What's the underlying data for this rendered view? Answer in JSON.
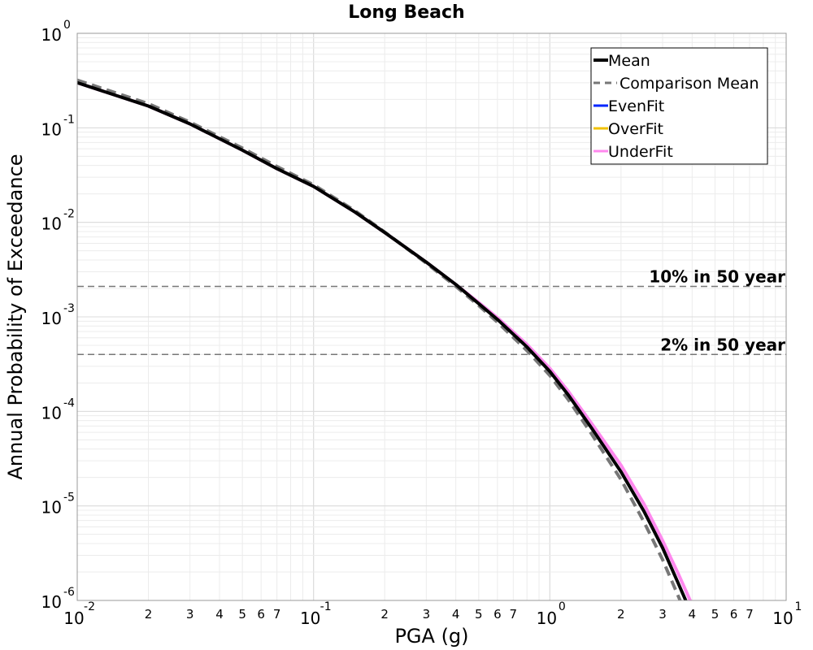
{
  "chart_data": {
    "type": "line",
    "title": "Long Beach",
    "xlabel": "PGA (g)",
    "ylabel": "Annual Probability of Exceedance",
    "xscale": "log",
    "yscale": "log",
    "xlim": [
      0.01,
      10
    ],
    "ylim": [
      1e-06,
      1
    ],
    "grid": true,
    "legend_position": "top-right",
    "x_tick_labels": [
      {
        "value": 0.01,
        "base": "10",
        "exp": "-2"
      },
      {
        "value": 0.1,
        "base": "10",
        "exp": "-1"
      },
      {
        "value": 1,
        "base": "10",
        "exp": "0"
      },
      {
        "value": 10,
        "base": "10",
        "exp": "1"
      }
    ],
    "y_tick_labels": [
      {
        "value": 1,
        "base": "10",
        "exp": "0"
      },
      {
        "value": 0.1,
        "base": "10",
        "exp": "-1"
      },
      {
        "value": 0.01,
        "base": "10",
        "exp": "-2"
      },
      {
        "value": 0.001,
        "base": "10",
        "exp": "-3"
      },
      {
        "value": 0.0001,
        "base": "10",
        "exp": "-4"
      },
      {
        "value": 1e-05,
        "base": "10",
        "exp": "-5"
      },
      {
        "value": 1e-06,
        "base": "10",
        "exp": "-6"
      }
    ],
    "x_minor_labels": [
      "2",
      "3",
      "4",
      "5",
      "6",
      "7"
    ],
    "reference_lines": [
      {
        "label": "10% in 50 year",
        "y": 0.0021
      },
      {
        "label": "2% in 50 year",
        "y": 0.0004
      }
    ],
    "series": [
      {
        "name": "UnderFit",
        "color": "#ff88ee",
        "style": "solid",
        "x": [
          0.01,
          0.02,
          0.03,
          0.05,
          0.07,
          0.1,
          0.15,
          0.2,
          0.3,
          0.4,
          0.5,
          0.6,
          0.8,
          1.0,
          1.2,
          1.5,
          2.0,
          2.5,
          3.0,
          3.5,
          4.0
        ],
        "y": [
          0.3,
          0.17,
          0.11,
          0.058,
          0.037,
          0.024,
          0.0128,
          0.0078,
          0.0038,
          0.0022,
          0.00142,
          0.00098,
          0.00051,
          0.000285,
          0.000162,
          7.5e-05,
          2.7e-05,
          1.05e-05,
          4.3e-06,
          1.9e-06,
          9e-07
        ]
      },
      {
        "name": "OverFit",
        "color": "#f2c200",
        "style": "solid",
        "x": [],
        "y": []
      },
      {
        "name": "EvenFit",
        "color": "#0026ff",
        "style": "solid",
        "x": [],
        "y": []
      },
      {
        "name": "Comparison Mean",
        "color": "#777777",
        "style": "dashed",
        "x": [
          0.01,
          0.02,
          0.03,
          0.05,
          0.07,
          0.1,
          0.15,
          0.2,
          0.3,
          0.4,
          0.5,
          0.6,
          0.8,
          1.0,
          1.2,
          1.5,
          2.0,
          2.5,
          3.0,
          3.5,
          4.0
        ],
        "y": [
          0.32,
          0.18,
          0.115,
          0.061,
          0.039,
          0.025,
          0.0132,
          0.0079,
          0.0037,
          0.0021,
          0.00132,
          0.00088,
          0.00044,
          0.00024,
          0.000132,
          5.8e-05,
          1.9e-05,
          6.8e-06,
          2.7e-06,
          1.1e-06,
          5e-07
        ]
      },
      {
        "name": "Mean",
        "color": "#000000",
        "style": "solid",
        "x": [
          0.01,
          0.02,
          0.03,
          0.05,
          0.07,
          0.1,
          0.15,
          0.2,
          0.3,
          0.4,
          0.5,
          0.6,
          0.8,
          1.0,
          1.2,
          1.5,
          2.0,
          2.5,
          3.0,
          3.5,
          4.0
        ],
        "y": [
          0.3,
          0.17,
          0.11,
          0.058,
          0.037,
          0.024,
          0.0128,
          0.0078,
          0.0038,
          0.0022,
          0.00138,
          0.00094,
          0.00048,
          0.000265,
          0.000148,
          6.7e-05,
          2.3e-05,
          8.8e-06,
          3.6e-06,
          1.5e-06,
          7e-07
        ]
      }
    ],
    "legend": [
      {
        "label": "Mean",
        "color": "#000000",
        "style": "solid-thick"
      },
      {
        "label": "Comparison Mean",
        "color": "#777777",
        "style": "dashed"
      },
      {
        "label": "EvenFit",
        "color": "#0026ff",
        "style": "solid"
      },
      {
        "label": "OverFit",
        "color": "#f2c200",
        "style": "solid"
      },
      {
        "label": "UnderFit",
        "color": "#ff88ee",
        "style": "solid"
      }
    ]
  }
}
